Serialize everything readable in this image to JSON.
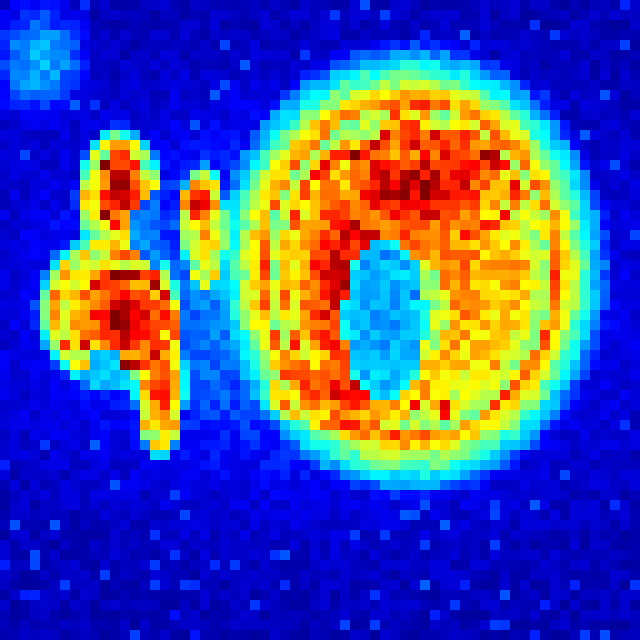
{
  "image": {
    "kind": "pixelated false-color intensity map",
    "colormap": "jet",
    "colormap_stops": [
      "#00008f",
      "#0000ff",
      "#00a0ff",
      "#00ffff",
      "#80ff80",
      "#ffff00",
      "#ff8000",
      "#ff0000",
      "#800000"
    ],
    "background_color": "#00008f",
    "grid_cells": 64
  }
}
